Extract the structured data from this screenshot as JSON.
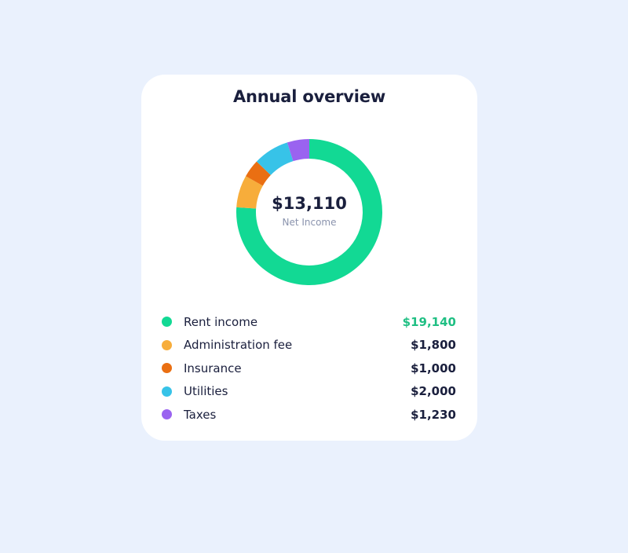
{
  "card": {
    "title": "Annual overview",
    "net_value": "$13,110",
    "net_label": "Net Income"
  },
  "chart_data": {
    "type": "pie",
    "categories": [
      "Rent income",
      "Administration fee",
      "Insurance",
      "Utilities",
      "Taxes"
    ],
    "values": [
      19140,
      1800,
      1000,
      2000,
      1230
    ],
    "value_labels": [
      "$19,140",
      "$1,800",
      "$1,000",
      "$2,000",
      "$1,230"
    ],
    "colors": [
      "#12d994",
      "#f7ad3b",
      "#ea6f12",
      "#37c3e8",
      "#9a63f0"
    ],
    "donut": true,
    "legend": "bottom"
  },
  "colors": {
    "background": "#eaf1fd",
    "card": "#ffffff",
    "text": "#1a1f3d",
    "positive": "#1fbf83",
    "muted": "#8a93ad"
  }
}
